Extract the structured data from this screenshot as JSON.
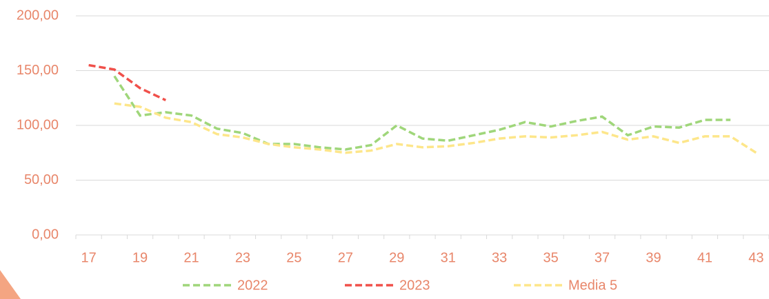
{
  "chart_data": {
    "type": "line",
    "categories": [
      17,
      null,
      19,
      null,
      21,
      null,
      23,
      null,
      25,
      null,
      27,
      null,
      29,
      null,
      31,
      null,
      33,
      null,
      35,
      null,
      37,
      null,
      39,
      null,
      41,
      null,
      43
    ],
    "series": [
      {
        "name": "2022",
        "color": "#9fd67a",
        "values": [
          null,
          145,
          109,
          112,
          109,
          97,
          93,
          83,
          83,
          80,
          78,
          82,
          100,
          88,
          86,
          91,
          96,
          103,
          99,
          104,
          108,
          91,
          99,
          98,
          105,
          105,
          null
        ]
      },
      {
        "name": "2023",
        "color": "#f0504a",
        "values": [
          155,
          151,
          134,
          123,
          null,
          null,
          null,
          null,
          null,
          null,
          null,
          null,
          null,
          null,
          null,
          null,
          null,
          null,
          null,
          null,
          null,
          null,
          null,
          null,
          null,
          null,
          null
        ]
      },
      {
        "name": "Media 5",
        "color": "#fde68a",
        "values": [
          null,
          120,
          117,
          107,
          103,
          92,
          89,
          83,
          80,
          78,
          75,
          77,
          83,
          80,
          81,
          84,
          88,
          90,
          89,
          91,
          94,
          87,
          90,
          84,
          90,
          90,
          75
        ]
      }
    ],
    "ylim": [
      0,
      200
    ],
    "yticks": [
      {
        "value": 0,
        "label": "0,00"
      },
      {
        "value": 50,
        "label": "50,00"
      },
      {
        "value": 100,
        "label": "100,00"
      },
      {
        "value": 150,
        "label": "150,00"
      },
      {
        "value": 200,
        "label": "200,00"
      }
    ],
    "grid": true,
    "legend": "bottom"
  }
}
